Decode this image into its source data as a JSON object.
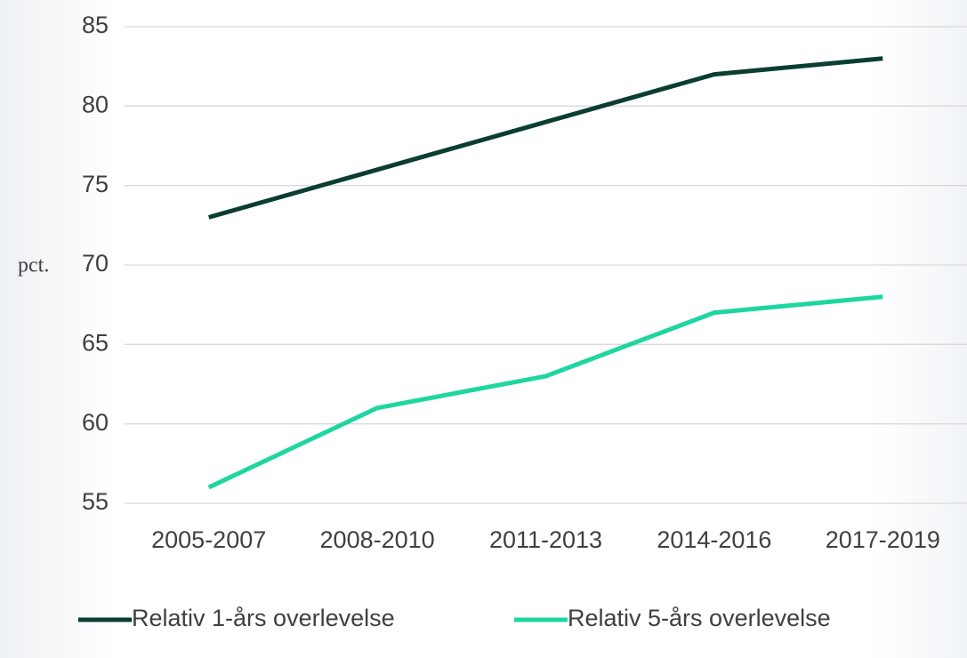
{
  "chart_data": {
    "type": "line",
    "y_label": "pct.",
    "categories": [
      "2005-2007",
      "2008-2010",
      "2011-2013",
      "2014-2016",
      "2017-2019"
    ],
    "series": [
      {
        "name": "Relativ 1-års overlevelse",
        "color": "#0b3d33",
        "values": [
          73,
          76,
          79,
          82,
          83
        ]
      },
      {
        "name": "Relativ 5-års overlevelse",
        "color": "#1ed6a0",
        "values": [
          56,
          61,
          63,
          67,
          68
        ]
      }
    ],
    "ylim": [
      55,
      85
    ],
    "yticks": [
      55,
      60,
      65,
      70,
      75,
      80,
      85
    ],
    "grid": true,
    "legend": "bottom"
  }
}
